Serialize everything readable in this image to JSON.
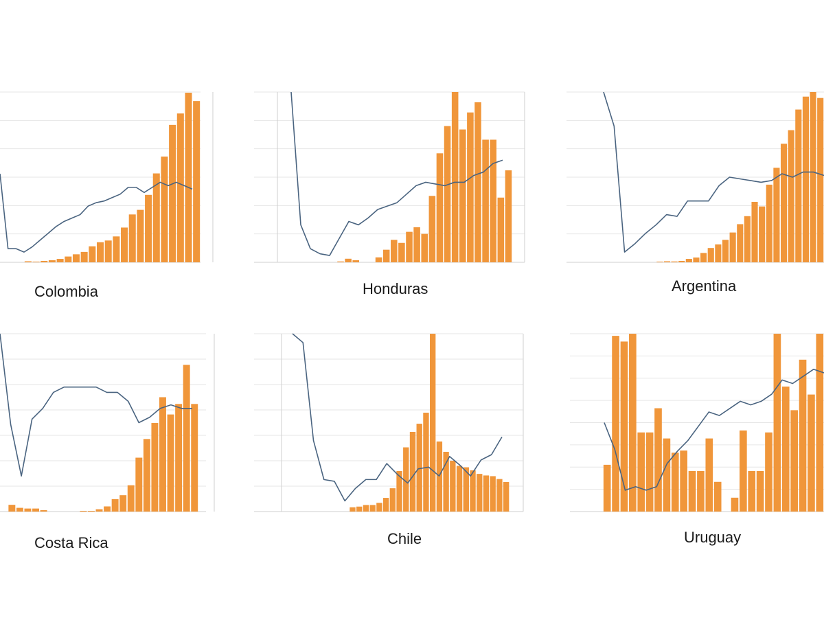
{
  "colors": {
    "bar": "#f0963a",
    "line": "#4a6480",
    "grid": "#e6e6e6",
    "axis": "#cfcfcf",
    "label": "#1a1a1a"
  },
  "chart_data": [
    {
      "type": "bar+line",
      "title": "Colombia",
      "ylim": [
        0,
        100
      ],
      "y2lim": [
        0,
        1
      ],
      "bars": [
        0,
        0,
        0,
        0.6,
        0.4,
        0.8,
        1.2,
        2,
        3.4,
        4.7,
        6.1,
        9.4,
        11.8,
        12.8,
        15.2,
        20.4,
        28.1,
        30.8,
        39.6,
        52.2,
        62.1,
        80.7,
        87.4,
        99.6,
        94.7
      ],
      "line": [
        0.52,
        0.08,
        0.08,
        0.06,
        0.09,
        0.13,
        0.17,
        0.21,
        0.24,
        0.26,
        0.28,
        0.33,
        0.35,
        0.36,
        0.38,
        0.4,
        0.44,
        0.44,
        0.41,
        0.44,
        0.47,
        0.45,
        0.47,
        0.45,
        0.43
      ]
    },
    {
      "type": "bar+line",
      "title": "Honduras",
      "ylim": [
        0,
        100
      ],
      "y2lim": [
        0,
        1
      ],
      "bars": [
        0,
        0,
        0,
        0,
        0.5,
        2.1,
        1.2,
        0,
        0,
        2.9,
        7.4,
        13.2,
        11.4,
        17.9,
        20.6,
        16.7,
        39,
        64,
        80,
        100,
        78,
        88,
        94,
        72,
        72,
        38,
        54
      ],
      "line": [
        1.0,
        0.22,
        0.08,
        0.05,
        0.04,
        0.14,
        0.24,
        0.22,
        0.26,
        0.31,
        0.33,
        0.35,
        0.4,
        0.45,
        0.47,
        0.46,
        0.45,
        0.47,
        0.47,
        0.51,
        0.53,
        0.58,
        0.6
      ]
    },
    {
      "type": "bar+line",
      "title": "Argentina",
      "ylim": [
        0,
        100
      ],
      "y2lim": [
        0,
        1
      ],
      "bars": [
        0,
        0,
        0,
        0,
        0.4,
        0.6,
        0.5,
        0.8,
        2,
        2.8,
        5.5,
        8.4,
        10.5,
        13.2,
        17.5,
        22.4,
        27.1,
        35.5,
        32.8,
        45.6,
        55.5,
        69.6,
        77.6,
        89.7,
        97.3,
        100,
        96.5
      ],
      "line": [
        1.0,
        0.8,
        0.06,
        0.11,
        0.17,
        0.22,
        0.28,
        0.27,
        0.36,
        0.36,
        0.36,
        0.45,
        0.5,
        0.49,
        0.48,
        0.47,
        0.48,
        0.52,
        0.5,
        0.53,
        0.53,
        0.51
      ]
    },
    {
      "type": "bar+line",
      "title": "Costa Rica",
      "ylim": [
        0,
        100
      ],
      "y2lim": [
        0,
        1
      ],
      "bars": [
        0,
        3.8,
        2.1,
        1.7,
        1.7,
        0.8,
        0,
        0,
        0,
        0,
        0.4,
        0.4,
        1.3,
        2.9,
        7,
        9.2,
        14.8,
        30.3,
        40.8,
        49.8,
        64.3,
        54.6,
        60.5,
        82.5,
        60.5
      ],
      "line": [
        1.0,
        0.49,
        0.2,
        0.52,
        0.58,
        0.67,
        0.7,
        0.7,
        0.7,
        0.7,
        0.67,
        0.67,
        0.62,
        0.5,
        0.53,
        0.58,
        0.6,
        0.58,
        0.58
      ]
    },
    {
      "type": "bar+line",
      "title": "Chile",
      "ylim": [
        0,
        100
      ],
      "y2lim": [
        0,
        1
      ],
      "bars": [
        0,
        0,
        0,
        0,
        0,
        2.4,
        2.8,
        3.7,
        3.7,
        4.9,
        7.7,
        13.1,
        22.8,
        36.1,
        44.8,
        49.4,
        55.6,
        100,
        39.4,
        33.6,
        28.6,
        25.7,
        24.9,
        23.2,
        21.2,
        20.3,
        19.9,
        18.3,
        16.6
      ],
      "line": [
        1.0,
        0.95,
        0.4,
        0.18,
        0.17,
        0.06,
        0.13,
        0.18,
        0.18,
        0.27,
        0.21,
        0.16,
        0.24,
        0.25,
        0.2,
        0.31,
        0.26,
        0.2,
        0.29,
        0.32,
        0.42
      ]
    },
    {
      "type": "bar+line",
      "title": "Uruguay",
      "ylim": [
        0,
        100
      ],
      "y2lim": [
        0,
        1
      ],
      "bars": [
        26.3,
        98.8,
        95.6,
        100,
        44.5,
        44.5,
        58.1,
        41.1,
        33.1,
        34.3,
        22.8,
        22.8,
        41.1,
        16.7,
        0,
        7.8,
        45.6,
        22.8,
        22.8,
        44.5,
        100,
        70.3,
        57,
        85.4,
        65.8,
        100
      ],
      "line": [
        0.5,
        0.35,
        0.12,
        0.14,
        0.12,
        0.14,
        0.27,
        0.34,
        0.4,
        0.48,
        0.56,
        0.54,
        0.58,
        0.62,
        0.6,
        0.62,
        0.66,
        0.74,
        0.72,
        0.76,
        0.8,
        0.78
      ]
    }
  ]
}
